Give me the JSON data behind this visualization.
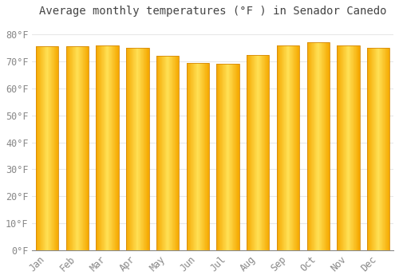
{
  "months": [
    "Jan",
    "Feb",
    "Mar",
    "Apr",
    "May",
    "Jun",
    "Jul",
    "Aug",
    "Sep",
    "Oct",
    "Nov",
    "Dec"
  ],
  "values": [
    75.5,
    75.5,
    76.0,
    75.0,
    72.0,
    69.5,
    69.0,
    72.5,
    76.0,
    77.0,
    76.0,
    75.0
  ],
  "bar_color_left": "#F5A800",
  "bar_color_center": "#FFD966",
  "bar_color_right": "#F5A800",
  "bar_edge_color": "#D4890A",
  "title": "Average monthly temperatures (°F ) in Senador Canedo",
  "ylabel_ticks": [
    "0°F",
    "10°F",
    "20°F",
    "30°F",
    "40°F",
    "50°F",
    "60°F",
    "70°F",
    "80°F"
  ],
  "ytick_values": [
    0,
    10,
    20,
    30,
    40,
    50,
    60,
    70,
    80
  ],
  "ylim": [
    0,
    85
  ],
  "background_color": "#ffffff",
  "grid_color": "#e8e8e8",
  "title_fontsize": 10,
  "tick_fontsize": 8.5
}
